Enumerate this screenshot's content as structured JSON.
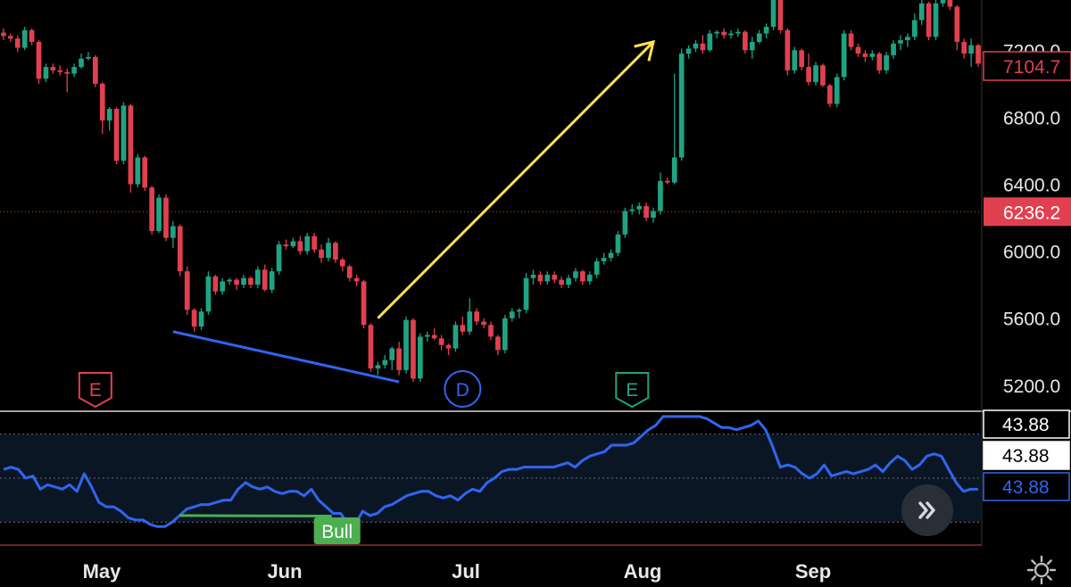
{
  "chart_data": [
    {
      "type": "candlestick",
      "title": "",
      "x_ticks": [
        "May",
        "Jun",
        "Jul",
        "Aug",
        "Sep"
      ],
      "y_ticks": [
        5200,
        5600,
        6000,
        6400,
        6800,
        7200
      ],
      "ylim": [
        5050,
        7500
      ],
      "last_price_label": "7104.7",
      "crosshair_price_label": "6236.2",
      "crosshair_price": 6236.2,
      "series": [
        {
          "name": "",
          "ohlc_approx": [
            [
              7305,
              7330,
              7260,
              7285
            ],
            [
              7285,
              7300,
              7250,
              7270
            ],
            [
              7270,
              7290,
              7190,
              7215
            ],
            [
              7215,
              7340,
              7200,
              7320
            ],
            [
              7320,
              7330,
              7230,
              7250
            ],
            [
              7250,
              7260,
              7000,
              7030
            ],
            [
              7030,
              7120,
              7010,
              7100
            ],
            [
              7100,
              7120,
              7060,
              7080
            ],
            [
              7080,
              7110,
              7050,
              7070
            ],
            [
              7070,
              7090,
              6950,
              7060
            ],
            [
              7060,
              7120,
              7040,
              7100
            ],
            [
              7100,
              7180,
              7090,
              7150
            ],
            [
              7150,
              7190,
              7140,
              7160
            ],
            [
              7160,
              7170,
              6980,
              7000
            ],
            [
              7000,
              7010,
              6700,
              6780
            ],
            [
              6780,
              6860,
              6720,
              6850
            ],
            [
              6850,
              6860,
              6520,
              6540
            ],
            [
              6540,
              6890,
              6520,
              6870
            ],
            [
              6870,
              6880,
              6350,
              6400
            ],
            [
              6400,
              6580,
              6380,
              6560
            ],
            [
              6560,
              6570,
              6360,
              6380
            ],
            [
              6380,
              6390,
              6100,
              6120
            ],
            [
              6120,
              6340,
              6110,
              6320
            ],
            [
              6320,
              6340,
              6060,
              6080
            ],
            [
              6080,
              6180,
              6020,
              6150
            ],
            [
              6150,
              6160,
              5850,
              5880
            ],
            [
              5880,
              5910,
              5620,
              5650
            ],
            [
              5650,
              5660,
              5520,
              5550
            ],
            [
              5550,
              5660,
              5530,
              5640
            ],
            [
              5640,
              5880,
              5620,
              5850
            ],
            [
              5850,
              5860,
              5740,
              5760
            ],
            [
              5760,
              5840,
              5740,
              5820
            ],
            [
              5820,
              5840,
              5800,
              5830
            ],
            [
              5830,
              5840,
              5770,
              5800
            ],
            [
              5800,
              5860,
              5780,
              5840
            ],
            [
              5840,
              5850,
              5780,
              5800
            ],
            [
              5800,
              5910,
              5780,
              5890
            ],
            [
              5890,
              5920,
              5760,
              5770
            ],
            [
              5770,
              5900,
              5750,
              5880
            ],
            [
              5880,
              6060,
              5860,
              6040
            ],
            [
              6040,
              6070,
              6010,
              6030
            ],
            [
              6030,
              6080,
              6020,
              6060
            ],
            [
              6060,
              6090,
              5980,
              6000
            ],
            [
              6000,
              6110,
              5980,
              6090
            ],
            [
              6090,
              6110,
              5990,
              6010
            ],
            [
              6010,
              6040,
              5930,
              5960
            ],
            [
              5960,
              6080,
              5940,
              6050
            ],
            [
              6050,
              6060,
              5930,
              5950
            ],
            [
              5950,
              5960,
              5880,
              5910
            ],
            [
              5910,
              5920,
              5820,
              5840
            ],
            [
              5840,
              5860,
              5790,
              5820
            ],
            [
              5820,
              5830,
              5540,
              5560
            ],
            [
              5560,
              5570,
              5280,
              5300
            ],
            [
              5300,
              5340,
              5260,
              5320
            ],
            [
              5320,
              5380,
              5300,
              5350
            ],
            [
              5350,
              5430,
              5290,
              5420
            ],
            [
              5420,
              5460,
              5260,
              5290
            ],
            [
              5290,
              5610,
              5270,
              5590
            ],
            [
              5590,
              5600,
              5220,
              5240
            ],
            [
              5240,
              5510,
              5220,
              5490
            ],
            [
              5490,
              5520,
              5460,
              5500
            ],
            [
              5500,
              5540,
              5470,
              5480
            ],
            [
              5480,
              5500,
              5410,
              5440
            ],
            [
              5440,
              5450,
              5380,
              5420
            ],
            [
              5420,
              5580,
              5400,
              5560
            ],
            [
              5560,
              5610,
              5500,
              5520
            ],
            [
              5520,
              5720,
              5500,
              5640
            ],
            [
              5640,
              5660,
              5560,
              5580
            ],
            [
              5580,
              5600,
              5540,
              5560
            ],
            [
              5560,
              5580,
              5470,
              5490
            ],
            [
              5490,
              5500,
              5380,
              5410
            ],
            [
              5410,
              5620,
              5390,
              5600
            ],
            [
              5600,
              5660,
              5580,
              5640
            ],
            [
              5640,
              5660,
              5600,
              5650
            ],
            [
              5650,
              5870,
              5630,
              5840
            ],
            [
              5840,
              5890,
              5800,
              5860
            ],
            [
              5860,
              5880,
              5800,
              5820
            ],
            [
              5820,
              5880,
              5800,
              5860
            ],
            [
              5860,
              5880,
              5810,
              5830
            ],
            [
              5830,
              5850,
              5780,
              5800
            ],
            [
              5800,
              5860,
              5780,
              5840
            ],
            [
              5840,
              5900,
              5820,
              5880
            ],
            [
              5880,
              5890,
              5800,
              5820
            ],
            [
              5820,
              5880,
              5800,
              5860
            ],
            [
              5860,
              5960,
              5840,
              5940
            ],
            [
              5940,
              5990,
              5920,
              5960
            ],
            [
              5960,
              6010,
              5940,
              5990
            ],
            [
              5990,
              6120,
              5970,
              6100
            ],
            [
              6100,
              6260,
              6080,
              6240
            ],
            [
              6240,
              6280,
              6220,
              6250
            ],
            [
              6250,
              6290,
              6220,
              6270
            ],
            [
              6270,
              6290,
              6180,
              6200
            ],
            [
              6200,
              6260,
              6170,
              6240
            ],
            [
              6240,
              6470,
              6220,
              6420
            ],
            [
              6420,
              6440,
              6400,
              6410
            ],
            [
              6410,
              7060,
              6400,
              6560
            ],
            [
              6560,
              7210,
              6540,
              7180
            ],
            [
              7180,
              7230,
              7150,
              7210
            ],
            [
              7210,
              7260,
              7190,
              7240
            ],
            [
              7240,
              7290,
              7180,
              7200
            ],
            [
              7200,
              7320,
              7190,
              7300
            ],
            [
              7300,
              7320,
              7270,
              7310
            ],
            [
              7310,
              7330,
              7270,
              7290
            ],
            [
              7290,
              7320,
              7270,
              7300
            ],
            [
              7300,
              7330,
              7280,
              7310
            ],
            [
              7310,
              7320,
              7180,
              7200
            ],
            [
              7200,
              7280,
              7150,
              7250
            ],
            [
              7250,
              7320,
              7240,
              7300
            ],
            [
              7300,
              7360,
              7270,
              7340
            ],
            [
              7340,
              7560,
              7320,
              7540
            ],
            [
              7540,
              7560,
              7300,
              7320
            ],
            [
              7320,
              7330,
              7050,
              7080
            ],
            [
              7080,
              7220,
              7060,
              7200
            ],
            [
              7200,
              7210,
              7080,
              7100
            ],
            [
              7100,
              7180,
              6990,
              7010
            ],
            [
              7010,
              7130,
              6990,
              7110
            ],
            [
              7110,
              7120,
              6980,
              6990
            ],
            [
              6990,
              7000,
              6860,
              6880
            ],
            [
              6880,
              7060,
              6860,
              7040
            ],
            [
              7040,
              7320,
              7020,
              7300
            ],
            [
              7300,
              7320,
              7200,
              7220
            ],
            [
              7220,
              7240,
              7160,
              7180
            ],
            [
              7180,
              7200,
              7130,
              7160
            ],
            [
              7160,
              7200,
              7140,
              7180
            ],
            [
              7180,
              7190,
              7060,
              7080
            ],
            [
              7080,
              7190,
              7060,
              7170
            ],
            [
              7170,
              7260,
              7150,
              7240
            ],
            [
              7240,
              7290,
              7200,
              7260
            ],
            [
              7260,
              7300,
              7220,
              7280
            ],
            [
              7280,
              7420,
              7260,
              7380
            ],
            [
              7380,
              7520,
              7350,
              7480
            ],
            [
              7480,
              7490,
              7260,
              7280
            ],
            [
              7280,
              7510,
              7260,
              7480
            ],
            [
              7480,
              7540,
              7460,
              7520
            ],
            [
              7520,
              7530,
              7440,
              7460
            ],
            [
              7460,
              7470,
              7200,
              7250
            ],
            [
              7250,
              7270,
              7150,
              7180
            ],
            [
              7180,
              7270,
              7100,
              7230
            ],
            [
              7230,
              7240,
              7100,
              7120
            ]
          ]
        }
      ],
      "annotations": [
        {
          "kind": "earnings-flag",
          "label": "E",
          "x_index": 13,
          "color": "#e0404f"
        },
        {
          "kind": "dividend-flag",
          "label": "D",
          "x_index": 65,
          "color": "#2f66f0"
        },
        {
          "kind": "earnings-flag",
          "label": "E",
          "x_index": 89,
          "color": "#1fa383"
        },
        {
          "kind": "trendline",
          "from": [
            24,
            5520
          ],
          "to": [
            56,
            5220
          ],
          "color": "#2f66f0"
        },
        {
          "kind": "arrow",
          "from": [
            53,
            5600
          ],
          "to": [
            92,
            7250
          ],
          "color": "#ffe14d"
        }
      ]
    },
    {
      "type": "line",
      "panel": "indicator",
      "title": "",
      "value_labels": [
        "43.88",
        "43.88",
        "43.88"
      ],
      "ylim": [
        20,
        80
      ],
      "series": [
        {
          "name": "",
          "color": "#2f66f0",
          "values": [
            54,
            55,
            54,
            50,
            51,
            45,
            47,
            46,
            45,
            47,
            44,
            52,
            46,
            39,
            37,
            37,
            35,
            32,
            31,
            31,
            29,
            28,
            28,
            30,
            33,
            36,
            37,
            38,
            38,
            39,
            40,
            40,
            45,
            48,
            46,
            45,
            46,
            44,
            43,
            44,
            44,
            42,
            45,
            40,
            37,
            34,
            34,
            29,
            29,
            35,
            33,
            34,
            37,
            38,
            40,
            42,
            43,
            44,
            44,
            42,
            41,
            42,
            40,
            43,
            45,
            44,
            48,
            50,
            53,
            54,
            54,
            55,
            55,
            55,
            55,
            55,
            56,
            57,
            55,
            58,
            60,
            61,
            62,
            65,
            65,
            65,
            66,
            69,
            72,
            74,
            78,
            78,
            78,
            78,
            78,
            78,
            77,
            75,
            73,
            73,
            72,
            73,
            74,
            76,
            72,
            64,
            55,
            56,
            55,
            52,
            50,
            52,
            56,
            51,
            52,
            53,
            52,
            53,
            54,
            56,
            53,
            57,
            60,
            58,
            54,
            56,
            60,
            61,
            60,
            54,
            48,
            44,
            45,
            45
          ]
        }
      ],
      "divergence": {
        "from_index": 24,
        "to_index": 46,
        "color": "#4caf50",
        "label": "Bull"
      }
    }
  ],
  "ui": {
    "scroll_icon": "double-chevron-right-icon",
    "settings_icon": "gear-icon"
  }
}
